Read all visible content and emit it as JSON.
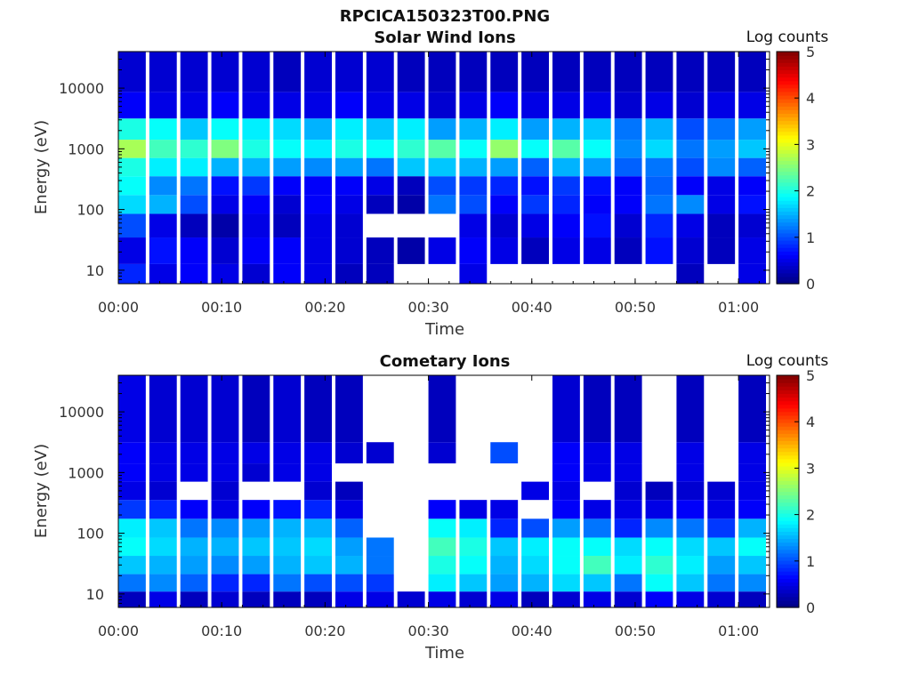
{
  "figure_title": "RPCICA150323T00.PNG",
  "chart_data": [
    {
      "type": "heatmap",
      "title": "Solar Wind Ions",
      "xlabel": "Time",
      "ylabel": "Energy (eV)",
      "x_tick_labels": [
        "00:00",
        "00:10",
        "00:20",
        "00:30",
        "00:40",
        "00:50",
        "01:00"
      ],
      "x_range_minutes": [
        0,
        63
      ],
      "y_tick_labels": [
        "10",
        "100",
        "1000",
        "10000"
      ],
      "y_tick_values": [
        10,
        100,
        1000,
        10000
      ],
      "y_range_eV": [
        6,
        40000
      ],
      "y_scale": "log",
      "colorbar": {
        "label": "Log counts",
        "min": 0,
        "max": 5,
        "ticks": [
          "0",
          "1",
          "2",
          "3",
          "4",
          "5"
        ],
        "colormap": "jet"
      },
      "time_minutes": [
        0,
        3,
        6,
        9,
        12,
        15,
        18,
        21,
        24,
        27,
        30,
        33,
        36,
        39,
        42,
        45,
        48,
        51,
        54,
        57,
        60
      ],
      "energy_eV": [
        8,
        20,
        60,
        120,
        250,
        500,
        1000,
        2000,
        5000,
        15000
      ],
      "values": [
        [
          0.8,
          0.5,
          0.6,
          0.5,
          0.4,
          0.6,
          0.5,
          0.3,
          0.3,
          0.0,
          0.0,
          0.5,
          0.0,
          0.0,
          0.0,
          0.0,
          0.0,
          0.0,
          0.3,
          0.0,
          0.5
        ],
        [
          0.5,
          0.7,
          0.6,
          0.4,
          0.6,
          0.6,
          0.5,
          0.4,
          0.3,
          0.2,
          0.5,
          0.6,
          0.5,
          0.3,
          0.5,
          0.5,
          0.3,
          0.7,
          0.4,
          0.3,
          0.5
        ],
        [
          1.0,
          0.5,
          0.3,
          0.2,
          0.5,
          0.3,
          0.5,
          0.4,
          0.0,
          0.0,
          0.0,
          0.5,
          0.4,
          0.5,
          0.6,
          0.7,
          0.4,
          0.8,
          0.5,
          0.3,
          0.4
        ],
        [
          1.7,
          1.5,
          1.0,
          0.5,
          0.6,
          0.4,
          0.6,
          0.5,
          0.3,
          0.2,
          1.2,
          1.0,
          0.6,
          0.9,
          0.8,
          0.6,
          0.6,
          1.2,
          1.3,
          0.5,
          0.7
        ],
        [
          1.9,
          1.3,
          1.2,
          0.7,
          0.9,
          0.6,
          0.6,
          0.6,
          0.5,
          0.3,
          1.0,
          0.9,
          0.8,
          0.7,
          0.9,
          0.7,
          0.6,
          1.1,
          0.6,
          0.5,
          0.6
        ],
        [
          2.0,
          1.8,
          1.8,
          1.5,
          1.5,
          1.4,
          1.3,
          1.4,
          1.2,
          1.6,
          1.6,
          1.5,
          1.4,
          1.1,
          1.5,
          1.4,
          1.1,
          1.2,
          1.0,
          1.3,
          1.1
        ],
        [
          2.7,
          2.2,
          2.1,
          2.5,
          2.0,
          1.9,
          1.8,
          2.0,
          1.9,
          2.1,
          2.3,
          1.9,
          2.6,
          1.9,
          2.3,
          1.9,
          1.3,
          1.7,
          1.2,
          1.4,
          1.6
        ],
        [
          2.0,
          1.9,
          1.6,
          1.9,
          1.8,
          1.7,
          1.5,
          1.8,
          1.6,
          1.8,
          1.4,
          1.5,
          1.8,
          1.4,
          1.5,
          1.6,
          1.2,
          1.5,
          1.0,
          1.2,
          1.4
        ],
        [
          0.6,
          0.5,
          0.5,
          0.6,
          0.5,
          0.5,
          0.5,
          0.6,
          0.5,
          0.5,
          0.4,
          0.5,
          0.6,
          0.5,
          0.5,
          0.5,
          0.4,
          0.5,
          0.4,
          0.5,
          0.5
        ],
        [
          0.4,
          0.4,
          0.4,
          0.4,
          0.4,
          0.3,
          0.4,
          0.4,
          0.4,
          0.3,
          0.3,
          0.3,
          0.3,
          0.3,
          0.3,
          0.3,
          0.3,
          0.3,
          0.3,
          0.3,
          0.3
        ]
      ]
    },
    {
      "type": "heatmap",
      "title": "Cometary Ions",
      "xlabel": "Time",
      "ylabel": "Energy (eV)",
      "x_tick_labels": [
        "00:00",
        "00:10",
        "00:20",
        "00:30",
        "00:40",
        "00:50",
        "01:00"
      ],
      "x_range_minutes": [
        0,
        63
      ],
      "y_tick_labels": [
        "10",
        "100",
        "1000",
        "10000"
      ],
      "y_tick_values": [
        10,
        100,
        1000,
        10000
      ],
      "y_range_eV": [
        6,
        40000
      ],
      "y_scale": "log",
      "colorbar": {
        "label": "Log counts",
        "min": 0,
        "max": 5,
        "ticks": [
          "0",
          "1",
          "2",
          "3",
          "4",
          "5"
        ],
        "colormap": "jet"
      },
      "time_minutes": [
        0,
        3,
        6,
        9,
        12,
        15,
        18,
        21,
        24,
        27,
        30,
        33,
        36,
        39,
        42,
        45,
        48,
        51,
        54,
        57,
        60
      ],
      "energy_eV": [
        8,
        15,
        30,
        60,
        120,
        250,
        500,
        1000,
        2000,
        5000
      ],
      "values": [
        [
          0.3,
          0.5,
          0.3,
          0.4,
          0.3,
          0.3,
          0.3,
          0.5,
          0.5,
          0.4,
          0.5,
          0.4,
          0.5,
          0.3,
          0.4,
          0.5,
          0.4,
          0.6,
          0.5,
          0.4,
          0.3
        ],
        [
          1.2,
          1.3,
          1.1,
          0.8,
          0.8,
          1.2,
          1.0,
          1.0,
          0.9,
          0.0,
          1.8,
          1.6,
          1.4,
          1.5,
          1.7,
          1.6,
          1.2,
          1.9,
          1.6,
          1.2,
          1.3
        ],
        [
          1.6,
          1.5,
          1.4,
          1.3,
          1.4,
          1.5,
          1.6,
          1.5,
          1.2,
          0.0,
          2.0,
          1.9,
          1.5,
          1.7,
          1.9,
          2.2,
          1.8,
          2.1,
          1.8,
          1.4,
          1.6
        ],
        [
          1.9,
          1.7,
          1.5,
          1.5,
          1.6,
          1.6,
          1.7,
          1.4,
          1.2,
          0.0,
          2.2,
          2.0,
          1.6,
          1.8,
          1.9,
          1.9,
          1.7,
          1.9,
          1.7,
          1.6,
          1.9
        ],
        [
          1.8,
          1.6,
          1.2,
          1.3,
          1.4,
          1.5,
          1.5,
          1.1,
          0.0,
          0.0,
          1.9,
          1.8,
          0.8,
          1.0,
          1.4,
          1.2,
          0.8,
          1.3,
          1.2,
          0.9,
          1.5
        ],
        [
          0.9,
          0.8,
          0.6,
          0.5,
          0.6,
          0.7,
          0.8,
          0.5,
          0.0,
          0.0,
          0.6,
          0.5,
          0.5,
          0.0,
          0.6,
          0.5,
          0.5,
          0.5,
          0.6,
          0.5,
          0.6
        ],
        [
          0.5,
          0.4,
          0.0,
          0.4,
          0.0,
          0.0,
          0.4,
          0.3,
          0.0,
          0.0,
          0.0,
          0.0,
          0.0,
          0.5,
          0.5,
          0.0,
          0.4,
          0.3,
          0.4,
          0.4,
          0.5
        ],
        [
          0.6,
          0.5,
          0.5,
          0.5,
          0.4,
          0.5,
          0.5,
          0.0,
          0.0,
          0.0,
          0.0,
          0.0,
          0.0,
          0.0,
          0.6,
          0.5,
          0.5,
          0.0,
          0.5,
          0.0,
          0.5
        ],
        [
          0.6,
          0.5,
          0.5,
          0.5,
          0.5,
          0.5,
          0.5,
          0.4,
          0.4,
          0.0,
          0.4,
          0.0,
          1.0,
          0.0,
          0.6,
          0.5,
          0.5,
          0.0,
          0.5,
          0.0,
          0.5
        ],
        [
          0.5,
          0.4,
          0.4,
          0.4,
          0.3,
          0.4,
          0.3,
          0.3,
          0.0,
          0.0,
          0.3,
          0.0,
          0.0,
          0.0,
          0.4,
          0.3,
          0.3,
          0.0,
          0.3,
          0.0,
          0.3
        ]
      ]
    }
  ]
}
